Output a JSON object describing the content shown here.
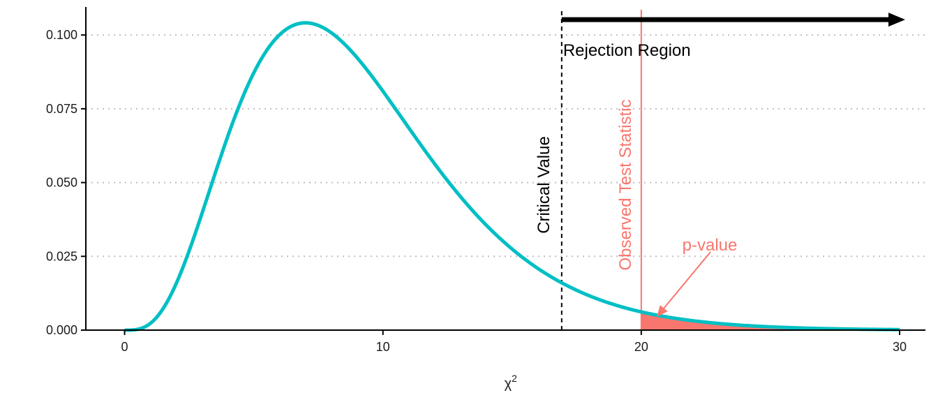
{
  "chart_data": {
    "type": "line",
    "title": "",
    "xlabel": "χ",
    "xlabel_superscript": "2",
    "xlim": [
      -1.5,
      31
    ],
    "ylim": [
      0,
      0.1095
    ],
    "x_ticks": [
      0,
      10,
      20,
      30
    ],
    "x_tick_labels": [
      "0",
      "10",
      "20",
      "30"
    ],
    "y_ticks": [
      0,
      0.025,
      0.05,
      0.075,
      0.1
    ],
    "y_tick_labels": [
      "0.000",
      "0.025",
      "0.050",
      "0.075",
      "0.100"
    ],
    "grid": "horizontal dotted major gridlines",
    "distribution": {
      "name": "chi-square",
      "df": 9,
      "x_range": [
        0,
        30
      ]
    },
    "critical_value": 16.92,
    "observed_statistic": 20,
    "annotations": {
      "critical_value_label": "Critical Value",
      "observed_label": "Observed Test Statistic",
      "rejection_label": "Rejection Region",
      "pvalue_label": "p-value"
    },
    "colors": {
      "curve": "#00BFC4",
      "observed": "#F8766D",
      "shade": "#F8766D",
      "critical": "#000000",
      "arrow": "#000000",
      "grid": "#bfbfbf",
      "axis": "#000000"
    }
  }
}
